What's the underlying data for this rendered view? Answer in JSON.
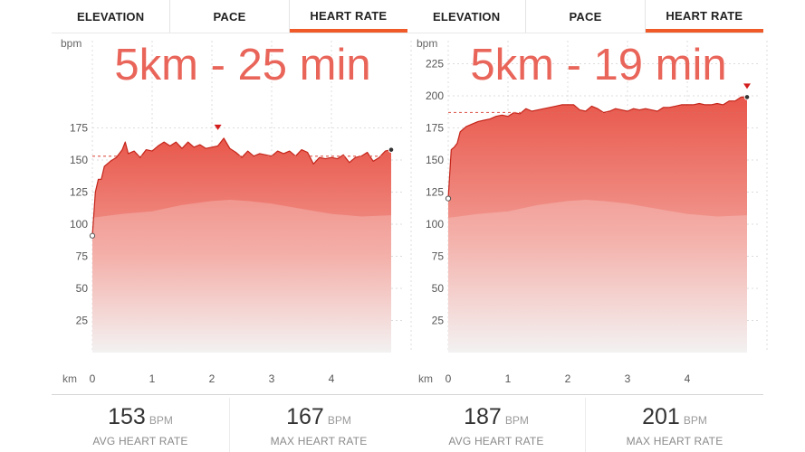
{
  "tabs": [
    "ELEVATION",
    "PACE",
    "HEART RATE"
  ],
  "active_tab": 2,
  "colors": {
    "accent": "#f05a28",
    "fill_top": "#e9574b",
    "fill_bottom": "#f0eeee",
    "line": "#c4251a",
    "avg_line": "#e0665a",
    "overlay_text": "#e9655a",
    "axis_text": "#555555"
  },
  "panels": [
    {
      "overlay_text": "5km - 25 min",
      "stats": [
        {
          "value": "153",
          "unit": "BPM",
          "label": "AVG HEART RATE"
        },
        {
          "value": "167",
          "unit": "BPM",
          "label": "MAX HEART RATE"
        }
      ]
    },
    {
      "overlay_text": "5km - 19 min",
      "stats": [
        {
          "value": "187",
          "unit": "BPM",
          "label": "AVG HEART RATE"
        },
        {
          "value": "201",
          "unit": "BPM",
          "label": "MAX HEART RATE"
        }
      ]
    }
  ],
  "chart_data": [
    {
      "type": "area",
      "ylabel": "bpm",
      "xlabel": "km",
      "ylim": [
        0,
        175
      ],
      "yticks": [
        25,
        50,
        75,
        100,
        125,
        150,
        175
      ],
      "xlim": [
        0,
        5.0
      ],
      "xticks": [
        0,
        1,
        2,
        3,
        4
      ],
      "grid": true,
      "avg_line": 153,
      "max_marker_x": 2.1,
      "series": [
        {
          "x": [
            0,
            0.05,
            0.1,
            0.15,
            0.2,
            0.3,
            0.4,
            0.5,
            0.55,
            0.6,
            0.7,
            0.8,
            0.9,
            1.0,
            1.1,
            1.2,
            1.3,
            1.4,
            1.5,
            1.6,
            1.7,
            1.8,
            1.9,
            2.0,
            2.1,
            2.2,
            2.3,
            2.4,
            2.5,
            2.6,
            2.7,
            2.8,
            2.9,
            3.0,
            3.1,
            3.2,
            3.3,
            3.4,
            3.5,
            3.6,
            3.7,
            3.8,
            3.9,
            4.0,
            4.1,
            4.2,
            4.3,
            4.4,
            4.5,
            4.6,
            4.7,
            4.8,
            4.9,
            5.0
          ],
          "values": [
            91,
            125,
            135,
            135,
            145,
            149,
            152,
            158,
            164,
            155,
            157,
            152,
            158,
            157,
            161,
            164,
            161,
            164,
            159,
            164,
            160,
            162,
            159,
            160,
            161,
            167,
            159,
            156,
            152,
            157,
            153,
            155,
            154,
            153,
            157,
            155,
            157,
            153,
            158,
            156,
            147,
            152,
            151,
            152,
            151,
            154,
            148,
            152,
            153,
            156,
            149,
            152,
            157,
            158
          ]
        }
      ],
      "elevation_background": {
        "x": [
          0,
          0.5,
          1.0,
          1.5,
          2.0,
          2.3,
          2.6,
          3.0,
          3.5,
          4.0,
          4.5,
          5.0
        ],
        "values": [
          105,
          108,
          110,
          115,
          118,
          119,
          118,
          116,
          112,
          108,
          106,
          107
        ]
      }
    },
    {
      "type": "area",
      "ylabel": "bpm",
      "xlabel": "km",
      "ylim": [
        0,
        225
      ],
      "yticks": [
        25,
        50,
        75,
        100,
        125,
        150,
        175,
        200,
        225
      ],
      "xlim": [
        0,
        5.0
      ],
      "xticks": [
        0,
        1,
        2,
        3,
        4
      ],
      "grid": true,
      "avg_line": 187,
      "max_marker_x": 5.0,
      "series": [
        {
          "x": [
            0,
            0.05,
            0.1,
            0.15,
            0.2,
            0.3,
            0.4,
            0.5,
            0.6,
            0.7,
            0.8,
            0.9,
            1.0,
            1.1,
            1.2,
            1.3,
            1.4,
            1.5,
            1.6,
            1.7,
            1.8,
            1.9,
            2.0,
            2.1,
            2.2,
            2.3,
            2.4,
            2.5,
            2.6,
            2.7,
            2.8,
            2.9,
            3.0,
            3.1,
            3.2,
            3.3,
            3.4,
            3.5,
            3.6,
            3.7,
            3.8,
            3.9,
            4.0,
            4.1,
            4.2,
            4.3,
            4.4,
            4.5,
            4.6,
            4.7,
            4.8,
            4.9,
            5.0
          ],
          "values": [
            120,
            158,
            160,
            163,
            172,
            176,
            178,
            180,
            181,
            182,
            184,
            185,
            184,
            187,
            186,
            190,
            188,
            189,
            190,
            191,
            192,
            193,
            193,
            193,
            189,
            188,
            192,
            190,
            187,
            188,
            190,
            189,
            188,
            190,
            189,
            190,
            189,
            188,
            191,
            191,
            192,
            193,
            193,
            193,
            194,
            193,
            193,
            194,
            193,
            196,
            196,
            199,
            199
          ]
        }
      ],
      "elevation_background": {
        "x": [
          0,
          0.5,
          1.0,
          1.5,
          2.0,
          2.3,
          2.6,
          3.0,
          3.5,
          4.0,
          4.5,
          5.0
        ],
        "values": [
          105,
          108,
          110,
          115,
          118,
          119,
          118,
          116,
          112,
          108,
          106,
          107
        ]
      }
    }
  ]
}
